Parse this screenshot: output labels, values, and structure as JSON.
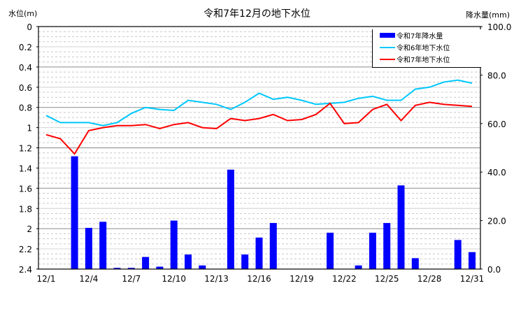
{
  "chart_data": {
    "type": "bar+line",
    "title": "令和7年12月の地下水位",
    "ylabel_left": "水位(m)",
    "ylabel_right": "降水量(mm)",
    "ylim_left": [
      0,
      2.4
    ],
    "ylim_left_inverted": true,
    "ylim_right": [
      0,
      100
    ],
    "yticks_left": [
      "0",
      "0.2",
      "0.4",
      "0.6",
      "0.8",
      "1",
      "1.2",
      "1.4",
      "1.6",
      "1.8",
      "2",
      "2.2",
      "2.4"
    ],
    "yticks_right": [
      "0.0",
      "20.0",
      "40.0",
      "60.0",
      "80.0",
      "100.0"
    ],
    "xticks": [
      "12/1",
      "12/4",
      "12/7",
      "12/10",
      "12/13",
      "12/16",
      "12/19",
      "12/22",
      "12/25",
      "12/28",
      "12/31"
    ],
    "grid": true,
    "legend_position": "top-right",
    "categories": [
      "12/1",
      "12/2",
      "12/3",
      "12/4",
      "12/5",
      "12/6",
      "12/7",
      "12/8",
      "12/9",
      "12/10",
      "12/11",
      "12/12",
      "12/13",
      "12/14",
      "12/15",
      "12/16",
      "12/17",
      "12/18",
      "12/19",
      "12/20",
      "12/21",
      "12/22",
      "12/23",
      "12/24",
      "12/25",
      "12/26",
      "12/27",
      "12/28",
      "12/29",
      "12/30",
      "12/31"
    ],
    "series": [
      {
        "name": "令和7年降水量",
        "type": "bar",
        "axis": "right",
        "color": "#0000ff",
        "values": [
          0,
          0,
          46.5,
          17.0,
          19.5,
          0.5,
          0.5,
          5.0,
          1.0,
          20.0,
          6.0,
          1.5,
          0,
          41.0,
          6.0,
          13.0,
          19.0,
          0,
          0,
          0,
          15.0,
          0,
          1.5,
          15.0,
          19.0,
          34.5,
          4.5,
          0,
          0,
          12.0,
          7.0
        ]
      },
      {
        "name": "令和6年地下水位",
        "type": "line",
        "axis": "left",
        "color": "#00c8ff",
        "values": [
          0.88,
          0.95,
          0.95,
          0.95,
          0.98,
          0.95,
          0.86,
          0.8,
          0.82,
          0.83,
          0.73,
          0.75,
          0.77,
          0.82,
          0.75,
          0.66,
          0.72,
          0.7,
          0.73,
          0.77,
          0.76,
          0.75,
          0.71,
          0.69,
          0.73,
          0.73,
          0.62,
          0.6,
          0.55,
          0.53,
          0.56
        ]
      },
      {
        "name": "令和7年地下水位",
        "type": "line",
        "axis": "left",
        "color": "#ff0000",
        "values": [
          1.07,
          1.11,
          1.26,
          1.03,
          1.0,
          0.98,
          0.98,
          0.97,
          1.01,
          0.97,
          0.95,
          1.0,
          1.01,
          0.91,
          0.93,
          0.91,
          0.87,
          0.93,
          0.92,
          0.87,
          0.76,
          0.96,
          0.95,
          0.82,
          0.77,
          0.93,
          0.78,
          0.75,
          0.77,
          0.78,
          0.79
        ]
      }
    ]
  }
}
